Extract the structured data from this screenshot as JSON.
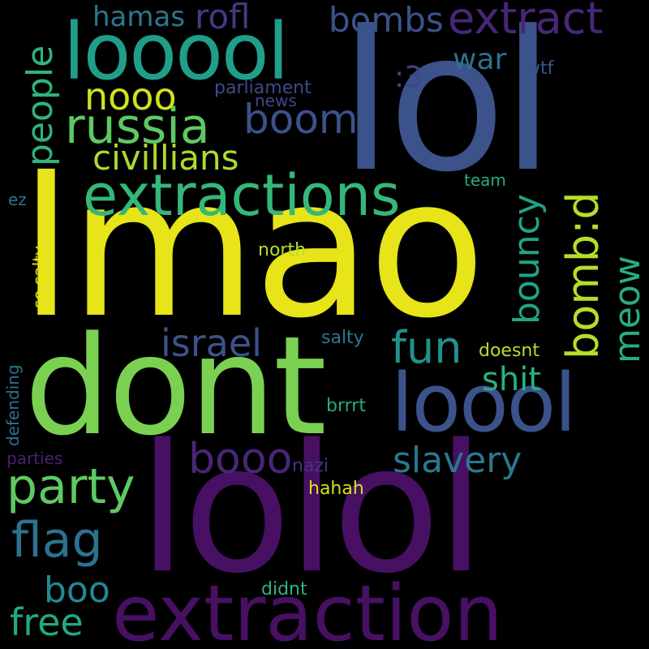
{
  "palette": {
    "background": "#000000",
    "dark_purple": "#471063",
    "purple": "#482677",
    "indigo": "#3b528b",
    "blue": "#345f8d",
    "steel": "#2c728e",
    "teal": "#21918c",
    "sea_green": "#27ad81",
    "green": "#5ec962",
    "lime": "#addc30",
    "yellow": "#e7e419"
  },
  "words": [
    {
      "text": "lmao",
      "color": "#e7e419",
      "orientation": "horizontal"
    },
    {
      "text": "lol",
      "color": "#3b528b",
      "orientation": "horizontal"
    },
    {
      "text": "lolol",
      "color": "#471063",
      "orientation": "horizontal"
    },
    {
      "text": "dont",
      "color": "#7ad151",
      "orientation": "horizontal"
    },
    {
      "text": "extraction",
      "color": "#471063",
      "orientation": "horizontal"
    },
    {
      "text": "looool",
      "color": "#1f9e89",
      "orientation": "horizontal"
    },
    {
      "text": "loool",
      "color": "#3b528b",
      "orientation": "horizontal"
    },
    {
      "text": "extractions",
      "color": "#35b779",
      "orientation": "horizontal"
    },
    {
      "text": "russia",
      "color": "#5ec962",
      "orientation": "horizontal"
    },
    {
      "text": "party",
      "color": "#5ec962",
      "orientation": "horizontal"
    },
    {
      "text": "extract",
      "color": "#482677",
      "orientation": "horizontal"
    },
    {
      "text": "people",
      "color": "#2fb47c",
      "orientation": "vertical"
    },
    {
      "text": "bombs",
      "color": "#3b528b",
      "orientation": "horizontal"
    },
    {
      "text": "rofl",
      "color": "#443983",
      "orientation": "horizontal"
    },
    {
      "text": "hamas",
      "color": "#2a788e",
      "orientation": "horizontal"
    },
    {
      "text": "war",
      "color": "#2c728e",
      "orientation": "horizontal"
    },
    {
      "text": "nooo",
      "color": "#d0e11c",
      "orientation": "horizontal"
    },
    {
      "text": "boom",
      "color": "#3b528b",
      "orientation": "horizontal"
    },
    {
      "text": "civillians",
      "color": "#addc30",
      "orientation": "horizontal"
    },
    {
      "text": ":3",
      "color": "#414487",
      "orientation": "horizontal"
    },
    {
      "text": "bouncy",
      "color": "#20a486",
      "orientation": "vertical"
    },
    {
      "text": "bomb:d",
      "color": "#b5de2b",
      "orientation": "vertical"
    },
    {
      "text": "meow",
      "color": "#27ad81",
      "orientation": "vertical"
    },
    {
      "text": "fun",
      "color": "#21918c",
      "orientation": "horizontal"
    },
    {
      "text": "israel",
      "color": "#3b528b",
      "orientation": "horizontal"
    },
    {
      "text": "shit",
      "color": "#2ab07f",
      "orientation": "horizontal"
    },
    {
      "text": "booo",
      "color": "#482677",
      "orientation": "horizontal"
    },
    {
      "text": "slavery",
      "color": "#2a788e",
      "orientation": "horizontal"
    },
    {
      "text": "flag",
      "color": "#2c728e",
      "orientation": "horizontal"
    },
    {
      "text": "boo",
      "color": "#23888e",
      "orientation": "horizontal"
    },
    {
      "text": "free",
      "color": "#22a884",
      "orientation": "horizontal"
    },
    {
      "text": "parliament",
      "color": "#3e4a89",
      "orientation": "horizontal"
    },
    {
      "text": "news",
      "color": "#3e4989",
      "orientation": "horizontal"
    },
    {
      "text": "wtf",
      "color": "#3b528b",
      "orientation": "horizontal"
    },
    {
      "text": "team",
      "color": "#27ad81",
      "orientation": "horizontal"
    },
    {
      "text": "ez",
      "color": "#2c728e",
      "orientation": "horizontal"
    },
    {
      "text": "so salty",
      "color": "#e7e419",
      "orientation": "vertical"
    },
    {
      "text": "north",
      "color": "#b5de2b",
      "orientation": "horizontal"
    },
    {
      "text": "salty",
      "color": "#2a788e",
      "orientation": "horizontal"
    },
    {
      "text": "doesnt",
      "color": "#b5de2b",
      "orientation": "horizontal"
    },
    {
      "text": "defending",
      "color": "#2c728e",
      "orientation": "vertical"
    },
    {
      "text": "brrrt",
      "color": "#25ab82",
      "orientation": "horizontal"
    },
    {
      "text": "parties",
      "color": "#482173",
      "orientation": "horizontal"
    },
    {
      "text": "nazi",
      "color": "#46337e",
      "orientation": "horizontal"
    },
    {
      "text": "hahah",
      "color": "#d8e219",
      "orientation": "horizontal"
    },
    {
      "text": "didnt",
      "color": "#2fb47c",
      "orientation": "horizontal"
    }
  ]
}
